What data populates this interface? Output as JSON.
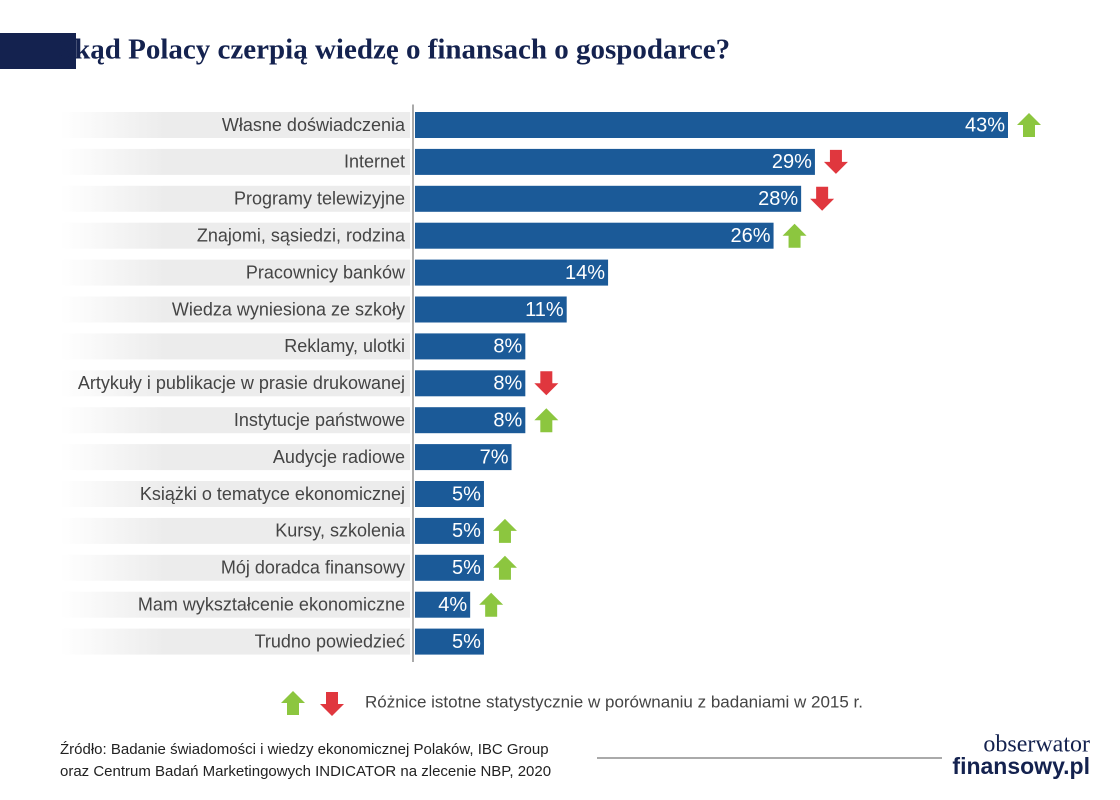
{
  "chart_data": {
    "type": "bar",
    "orientation": "horizontal",
    "title": "Skąd Polacy czerpią wiedzę o finansach o gospodarce?",
    "categories": [
      "Własne doświadczenia",
      "Internet",
      "Programy telewizyjne",
      "Znajomi, sąsiedzi, rodzina",
      "Pracownicy banków",
      "Wiedza wyniesiona ze szkoły",
      "Reklamy, ulotki",
      "Artykuły i publikacje w prasie drukowanej",
      "Instytucje państwowe",
      "Audycje radiowe",
      "Książki o tematyce ekonomicznej",
      "Kursy, szkolenia",
      "Mój doradca finansowy",
      "Mam wykształcenie ekonomiczne",
      "Trudno powiedzieć"
    ],
    "values": [
      43,
      29,
      28,
      26,
      14,
      11,
      8,
      8,
      8,
      7,
      5,
      5,
      5,
      4,
      5
    ],
    "value_labels": [
      "43%",
      "29%",
      "28%",
      "26%",
      "14%",
      "11%",
      "8%",
      "8%",
      "8%",
      "7%",
      "5%",
      "5%",
      "5%",
      "4%",
      "5%"
    ],
    "changes": [
      "up",
      "down",
      "down",
      "up",
      null,
      null,
      null,
      "down",
      "up",
      null,
      null,
      "up",
      "up",
      "up",
      null
    ],
    "color": "#1b5a98",
    "up_color": "#8cc63f",
    "down_color": "#e0373e",
    "legend_text": "Różnice istotne statystycznie w porównaniu z badaniami w 2015 r.",
    "source": [
      "Źródło: Badanie świadomości i wiedzy ekonomicznej Polaków, IBC Group",
      "oraz Centrum Badań Marketingowych INDICATOR na zlecenie NBP, 2020"
    ],
    "logo": [
      "obserwator",
      "finansowy.pl"
    ]
  }
}
